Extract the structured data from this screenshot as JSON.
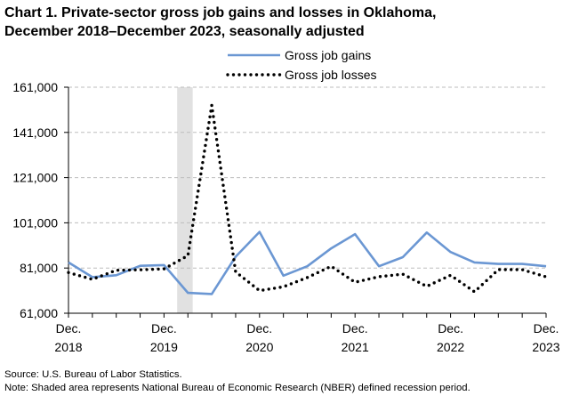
{
  "chart_data": {
    "type": "line",
    "title": "Chart 1. Private-sector gross job gains and losses in Oklahoma, December 2018–December 2023, seasonally adjusted",
    "title_lines": [
      "Chart 1. Private-sector gross job gains and losses in Oklahoma,",
      "December 2018–December 2023, seasonally adjusted"
    ],
    "x": [
      "Dec 2018",
      "Mar 2019",
      "Jun 2019",
      "Sep 2019",
      "Dec 2019",
      "Mar 2020",
      "Jun 2020",
      "Sep 2020",
      "Dec 2020",
      "Mar 2021",
      "Jun 2021",
      "Sep 2021",
      "Dec 2021",
      "Mar 2022",
      "Jun 2022",
      "Sep 2022",
      "Dec 2022",
      "Mar 2023",
      "Jun 2023",
      "Sep 2023",
      "Dec 2023"
    ],
    "x_tick_labels": [
      {
        "month": "Dec.",
        "year": "2018"
      },
      {
        "month": "Dec.",
        "year": "2019"
      },
      {
        "month": "Dec.",
        "year": "2020"
      },
      {
        "month": "Dec.",
        "year": "2021"
      },
      {
        "month": "Dec.",
        "year": "2022"
      },
      {
        "month": "Dec.",
        "year": "2023"
      }
    ],
    "y_ticks": [
      "161,000",
      "141,000",
      "121,000",
      "101,000",
      "81,000",
      "61,000"
    ],
    "ylim": [
      61000,
      161000
    ],
    "y_tick_values": [
      161000,
      141000,
      121000,
      101000,
      81000,
      61000
    ],
    "grid": "horizontal dashed",
    "legend_position": "top-center",
    "recession_shading": {
      "from": "Dec 2019",
      "to": "Mar 2020"
    },
    "series": [
      {
        "name": "Gross job gains",
        "color": "#6b97d3",
        "style": "solid",
        "values": [
          83500,
          77000,
          77800,
          82000,
          82300,
          70000,
          69500,
          86000,
          97000,
          77600,
          81800,
          89700,
          96000,
          81800,
          85800,
          96700,
          88100,
          83500,
          82800,
          82800,
          81800
        ]
      },
      {
        "name": "Gross job losses",
        "color": "#000000",
        "style": "dotted",
        "values": [
          79000,
          76000,
          80000,
          80200,
          80600,
          86500,
          153000,
          79300,
          71000,
          72700,
          76800,
          81800,
          74700,
          77200,
          78300,
          72900,
          77800,
          70500,
          80300,
          80300,
          77100
        ]
      }
    ]
  },
  "footer": {
    "source": "Source: U.S. Bureau of Labor Statistics.",
    "note": "Note: Shaded area represents National Bureau of Economic Research (NBER) defined recession period."
  },
  "colors": {
    "shading": "#e1e1e1",
    "grid": "#bdbdbd",
    "axis": "#000000"
  }
}
